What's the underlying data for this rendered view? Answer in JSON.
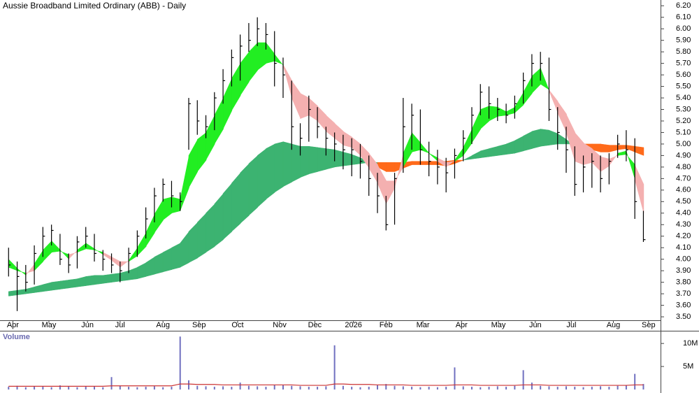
{
  "chart_data": [
    {
      "type": "hlc",
      "title": "Aussie Broadband Limited Ordinary (ABB) - Daily",
      "bar_color": "#000000",
      "x": [
        1,
        2,
        3,
        4,
        5,
        6,
        7,
        8,
        9,
        10,
        11,
        12,
        13,
        14,
        15,
        16,
        17,
        18,
        19,
        20,
        21,
        22,
        23,
        24,
        25,
        26,
        27,
        28,
        29,
        30,
        31,
        32,
        33,
        34,
        35,
        36,
        37,
        38,
        39,
        40,
        41,
        42,
        43,
        44,
        45,
        46,
        47,
        48,
        49,
        50,
        51,
        52,
        53,
        54,
        55,
        56,
        57,
        58,
        59,
        60,
        61,
        62,
        63,
        64,
        65,
        66,
        67,
        68,
        69,
        70,
        71,
        72,
        73,
        74,
        75
      ],
      "high": [
        4.1,
        3.98,
        3.95,
        4.12,
        4.28,
        4.3,
        4.22,
        4.05,
        4.2,
        4.28,
        4.22,
        4.08,
        4.05,
        3.98,
        4.1,
        4.25,
        4.45,
        4.62,
        4.7,
        4.68,
        4.58,
        5.4,
        5.38,
        5.25,
        5.45,
        5.65,
        5.82,
        5.95,
        6.05,
        6.1,
        6.05,
        5.98,
        5.75,
        5.55,
        5.18,
        5.42,
        5.32,
        5.15,
        5.1,
        5.08,
        5.05,
        5.0,
        4.9,
        4.75,
        4.55,
        4.75,
        5.4,
        5.35,
        5.3,
        5.02,
        4.95,
        4.88,
        4.96,
        5.12,
        5.32,
        5.52,
        5.5,
        5.4,
        5.35,
        5.42,
        5.62,
        5.78,
        5.8,
        5.75,
        5.32,
        5.15,
        4.98,
        4.9,
        4.92,
        4.9,
        4.92,
        5.08,
        5.12,
        5.05,
        4.42
      ],
      "low": [
        3.85,
        3.55,
        3.72,
        3.78,
        4.02,
        4.12,
        3.95,
        3.88,
        3.92,
        4.1,
        3.98,
        3.9,
        3.88,
        3.8,
        3.88,
        4.02,
        4.18,
        4.32,
        4.5,
        4.45,
        4.42,
        4.95,
        5.08,
        5.05,
        5.12,
        5.35,
        5.5,
        5.55,
        5.8,
        5.85,
        5.82,
        5.5,
        5.4,
        4.95,
        4.9,
        5.02,
        5.05,
        4.9,
        4.85,
        4.78,
        4.72,
        4.7,
        4.55,
        4.4,
        4.25,
        4.3,
        4.75,
        4.95,
        4.82,
        4.72,
        4.65,
        4.58,
        4.7,
        4.85,
        5.0,
        5.25,
        5.22,
        5.2,
        5.18,
        5.22,
        5.35,
        5.5,
        5.55,
        5.2,
        4.95,
        4.75,
        4.55,
        4.58,
        4.62,
        4.58,
        4.65,
        4.88,
        4.85,
        4.35,
        4.15
      ],
      "close": [
        3.95,
        3.85,
        3.8,
        4.05,
        4.2,
        4.25,
        4.0,
        3.95,
        4.15,
        4.2,
        4.05,
        4.0,
        3.95,
        3.9,
        4.05,
        4.2,
        4.35,
        4.55,
        4.65,
        4.55,
        4.5,
        5.35,
        5.2,
        5.15,
        5.4,
        5.55,
        5.75,
        5.85,
        5.9,
        6.0,
        5.95,
        5.7,
        5.6,
        5.15,
        5.05,
        5.3,
        5.15,
        5.05,
        5.0,
        4.95,
        4.95,
        4.85,
        4.7,
        4.55,
        4.3,
        4.7,
        5.15,
        5.25,
        4.95,
        4.85,
        4.8,
        4.75,
        4.9,
        5.05,
        5.25,
        5.45,
        5.35,
        5.3,
        5.25,
        5.35,
        5.55,
        5.7,
        5.7,
        5.3,
        5.1,
        4.95,
        4.65,
        4.8,
        4.85,
        4.7,
        4.85,
        5.0,
        4.95,
        4.5,
        4.17
      ],
      "ribbons": [
        {
          "color_up": "#3cb371",
          "color_down": "#ff6a1a",
          "fast": [
            3.72,
            3.73,
            3.74,
            3.76,
            3.78,
            3.8,
            3.81,
            3.82,
            3.83,
            3.85,
            3.86,
            3.86,
            3.87,
            3.88,
            3.9,
            3.93,
            3.97,
            4.02,
            4.06,
            4.1,
            4.14,
            4.24,
            4.32,
            4.4,
            4.48,
            4.57,
            4.66,
            4.75,
            4.83,
            4.9,
            4.96,
            5.0,
            5.02,
            5.0,
            4.98,
            4.98,
            4.97,
            4.96,
            4.95,
            4.93,
            4.91,
            4.88,
            4.85,
            4.8,
            4.76,
            4.76,
            4.79,
            4.82,
            4.82,
            4.82,
            4.82,
            4.81,
            4.83,
            4.86,
            4.9,
            4.94,
            4.96,
            4.98,
            5.0,
            5.03,
            5.07,
            5.11,
            5.13,
            5.12,
            5.09,
            5.04,
            4.98,
            4.96,
            4.95,
            4.93,
            4.93,
            4.95,
            4.96,
            4.93,
            4.9
          ],
          "slow": [
            3.68,
            3.69,
            3.7,
            3.71,
            3.72,
            3.73,
            3.74,
            3.75,
            3.76,
            3.77,
            3.78,
            3.79,
            3.8,
            3.81,
            3.82,
            3.83,
            3.85,
            3.87,
            3.89,
            3.91,
            3.93,
            3.97,
            4.01,
            4.06,
            4.11,
            4.17,
            4.24,
            4.31,
            4.38,
            4.45,
            4.52,
            4.58,
            4.63,
            4.67,
            4.71,
            4.74,
            4.76,
            4.78,
            4.8,
            4.81,
            4.82,
            4.83,
            4.84,
            4.84,
            4.84,
            4.84,
            4.84,
            4.85,
            4.85,
            4.85,
            4.85,
            4.85,
            4.86,
            4.86,
            4.87,
            4.88,
            4.89,
            4.9,
            4.91,
            4.92,
            4.94,
            4.96,
            4.98,
            4.99,
            5.0,
            5.0,
            5.0,
            5.0,
            5.0,
            5.0,
            4.99,
            4.99,
            4.99,
            4.98,
            4.97
          ]
        },
        {
          "color_up": "#22ee22",
          "color_down": "#f4b0b0",
          "fast": [
            4.0,
            3.92,
            3.86,
            3.96,
            4.08,
            4.16,
            4.08,
            4.0,
            4.08,
            4.14,
            4.09,
            4.04,
            3.99,
            3.93,
            3.99,
            4.1,
            4.23,
            4.39,
            4.52,
            4.54,
            4.52,
            4.9,
            5.04,
            5.1,
            5.25,
            5.4,
            5.57,
            5.7,
            5.8,
            5.88,
            5.88,
            5.78,
            5.68,
            5.4,
            5.22,
            5.25,
            5.2,
            5.11,
            5.05,
            4.99,
            4.97,
            4.9,
            4.79,
            4.66,
            4.48,
            4.62,
            4.92,
            5.1,
            5.01,
            4.92,
            4.85,
            4.8,
            4.86,
            4.97,
            5.13,
            5.3,
            5.33,
            5.32,
            5.28,
            5.32,
            5.45,
            5.59,
            5.66,
            5.46,
            5.27,
            5.1,
            4.85,
            4.82,
            4.84,
            4.76,
            4.81,
            4.92,
            4.94,
            4.69,
            4.4
          ],
          "slow": [
            3.93,
            3.9,
            3.88,
            3.9,
            3.98,
            4.06,
            4.07,
            4.04,
            4.06,
            4.09,
            4.08,
            4.06,
            4.02,
            3.98,
            3.98,
            4.03,
            4.11,
            4.23,
            4.34,
            4.4,
            4.42,
            4.62,
            4.76,
            4.86,
            5.0,
            5.13,
            5.29,
            5.42,
            5.54,
            5.64,
            5.7,
            5.72,
            5.69,
            5.55,
            5.44,
            5.4,
            5.33,
            5.25,
            5.18,
            5.11,
            5.06,
            5.0,
            4.92,
            4.82,
            4.68,
            4.68,
            4.8,
            4.93,
            4.95,
            4.92,
            4.88,
            4.84,
            4.85,
            4.9,
            5.01,
            5.13,
            5.2,
            5.24,
            5.25,
            5.27,
            5.34,
            5.44,
            5.52,
            5.47,
            5.37,
            5.26,
            5.1,
            5.01,
            4.96,
            4.89,
            4.87,
            4.9,
            4.91,
            4.82,
            4.65
          ]
        }
      ],
      "xlim": [
        0,
        77
      ],
      "xticks": [
        {
          "value": 1.5,
          "label": "Apr"
        },
        {
          "value": 5.7,
          "label": "May"
        },
        {
          "value": 10.2,
          "label": "Jun"
        },
        {
          "value": 14,
          "label": "Jul"
        },
        {
          "value": 19,
          "label": "Aug"
        },
        {
          "value": 23.2,
          "label": "Sep"
        },
        {
          "value": 27.7,
          "label": "Oct"
        },
        {
          "value": 32.6,
          "label": "Nov"
        },
        {
          "value": 36.7,
          "label": "Dec"
        },
        {
          "value": 41.2,
          "label": "2026"
        },
        {
          "value": 45,
          "label": "Feb"
        },
        {
          "value": 49.3,
          "label": "Mar"
        },
        {
          "value": 53.8,
          "label": "Apr"
        },
        {
          "value": 58.1,
          "label": "May"
        },
        {
          "value": 62.4,
          "label": "Jun"
        },
        {
          "value": 66.6,
          "label": "Jul"
        },
        {
          "value": 71.5,
          "label": "Aug"
        },
        {
          "value": 75.6,
          "label": "Sep"
        }
      ],
      "ylim": [
        3.47,
        6.25
      ],
      "yticks": [
        {
          "value": 3.5,
          "label": "3.50"
        },
        {
          "value": 3.6,
          "label": "3.60"
        },
        {
          "value": 3.7,
          "label": "3.70"
        },
        {
          "value": 3.8,
          "label": "3.80"
        },
        {
          "value": 3.9,
          "label": "3.90"
        },
        {
          "value": 4.0,
          "label": "4.00"
        },
        {
          "value": 4.1,
          "label": "4.10"
        },
        {
          "value": 4.2,
          "label": "4.20"
        },
        {
          "value": 4.3,
          "label": "4.30"
        },
        {
          "value": 4.4,
          "label": "4.40"
        },
        {
          "value": 4.5,
          "label": "4.50"
        },
        {
          "value": 4.6,
          "label": "4.60"
        },
        {
          "value": 4.7,
          "label": "4.70"
        },
        {
          "value": 4.8,
          "label": "4.80"
        },
        {
          "value": 4.9,
          "label": "4.90"
        },
        {
          "value": 5.0,
          "label": "5.00"
        },
        {
          "value": 5.1,
          "label": "5.10"
        },
        {
          "value": 5.2,
          "label": "5.20"
        },
        {
          "value": 5.3,
          "label": "5.30"
        },
        {
          "value": 5.4,
          "label": "5.40"
        },
        {
          "value": 5.5,
          "label": "5.50"
        },
        {
          "value": 5.6,
          "label": "5.60"
        },
        {
          "value": 5.7,
          "label": "5.70"
        },
        {
          "value": 5.8,
          "label": "5.80"
        },
        {
          "value": 5.9,
          "label": "5.90"
        },
        {
          "value": 6.0,
          "label": "6.00"
        },
        {
          "value": 6.1,
          "label": "6.10"
        },
        {
          "value": 6.2,
          "label": "6.20"
        }
      ]
    },
    {
      "type": "bar",
      "title": "Volume",
      "color": "#7070c0",
      "x": [
        1,
        2,
        3,
        4,
        5,
        6,
        7,
        8,
        9,
        10,
        11,
        12,
        13,
        14,
        15,
        16,
        17,
        18,
        19,
        20,
        21,
        22,
        23,
        24,
        25,
        26,
        27,
        28,
        29,
        30,
        31,
        32,
        33,
        34,
        35,
        36,
        37,
        38,
        39,
        40,
        41,
        42,
        43,
        44,
        45,
        46,
        47,
        48,
        49,
        50,
        51,
        52,
        53,
        54,
        55,
        56,
        57,
        58,
        59,
        60,
        61,
        62,
        63,
        64,
        65,
        66,
        67,
        68,
        69,
        70,
        71,
        72,
        73,
        74,
        75
      ],
      "values": [
        0.6,
        0.8,
        0.5,
        0.7,
        0.6,
        0.5,
        0.9,
        0.6,
        0.5,
        0.7,
        0.6,
        0.5,
        2.7,
        0.8,
        0.6,
        0.5,
        0.6,
        0.7,
        0.5,
        0.6,
        11.5,
        2.0,
        0.8,
        0.7,
        0.6,
        0.7,
        0.6,
        1.5,
        0.8,
        0.7,
        0.6,
        1.0,
        0.9,
        0.8,
        0.7,
        0.6,
        0.6,
        0.7,
        9.6,
        0.8,
        0.6,
        0.5,
        0.6,
        0.9,
        1.2,
        0.8,
        0.7,
        0.6,
        0.5,
        0.6,
        0.5,
        0.6,
        4.8,
        0.7,
        0.6,
        0.5,
        0.6,
        0.7,
        0.6,
        0.8,
        4.2,
        1.5,
        0.8,
        0.7,
        0.6,
        0.7,
        0.6,
        0.5,
        0.6,
        0.7,
        0.6,
        0.8,
        0.9,
        3.4,
        1.2
      ],
      "average": [
        0.7,
        0.7,
        0.7,
        0.7,
        0.7,
        0.7,
        0.7,
        0.7,
        0.7,
        0.7,
        0.7,
        0.7,
        0.8,
        0.8,
        0.8,
        0.8,
        0.8,
        0.8,
        0.8,
        0.8,
        1.2,
        1.2,
        1.1,
        1.1,
        1.1,
        1.0,
        1.0,
        1.0,
        1.0,
        1.0,
        1.0,
        1.0,
        1.0,
        1.0,
        0.9,
        0.9,
        0.9,
        0.9,
        1.2,
        1.2,
        1.1,
        1.1,
        1.1,
        1.0,
        1.0,
        1.0,
        1.0,
        0.9,
        0.9,
        0.9,
        0.9,
        0.9,
        1.0,
        1.0,
        1.0,
        0.9,
        0.9,
        0.9,
        0.9,
        0.9,
        1.0,
        1.0,
        1.0,
        0.9,
        0.9,
        0.9,
        0.9,
        0.9,
        0.9,
        0.9,
        0.9,
        0.9,
        0.9,
        1.0,
        1.0
      ],
      "average_color": "#cc3333",
      "xlim": [
        0,
        77
      ],
      "ylim": [
        0,
        12
      ],
      "yticks": [
        {
          "value": 5,
          "label": "5M"
        },
        {
          "value": 10,
          "label": "10M"
        }
      ]
    }
  ]
}
